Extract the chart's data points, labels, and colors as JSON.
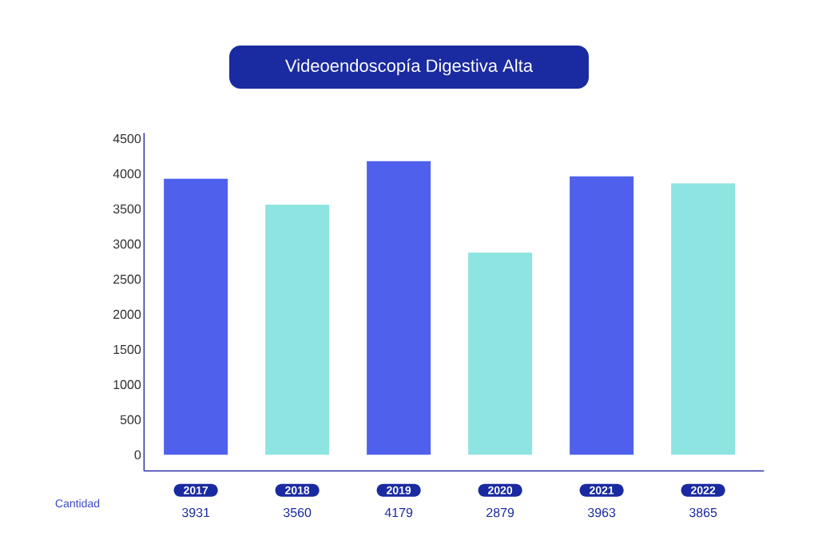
{
  "chart_data": {
    "type": "bar",
    "title": "Videoendoscopía Digestiva Alta",
    "categories": [
      "2017",
      "2018",
      "2019",
      "2020",
      "2021",
      "2022"
    ],
    "values": [
      3931,
      3560,
      4179,
      2879,
      3963,
      3865
    ],
    "colors": [
      "#4f61ec",
      "#8de4e0",
      "#4f61ec",
      "#8de4e0",
      "#4f61ec",
      "#8de4e0"
    ],
    "ylim": [
      -230,
      4580
    ],
    "yticks": [
      0,
      500,
      1000,
      1500,
      2000,
      2500,
      3000,
      3500,
      4000,
      4500
    ],
    "data_labels": true,
    "annotations": [
      "Cantidad"
    ]
  }
}
